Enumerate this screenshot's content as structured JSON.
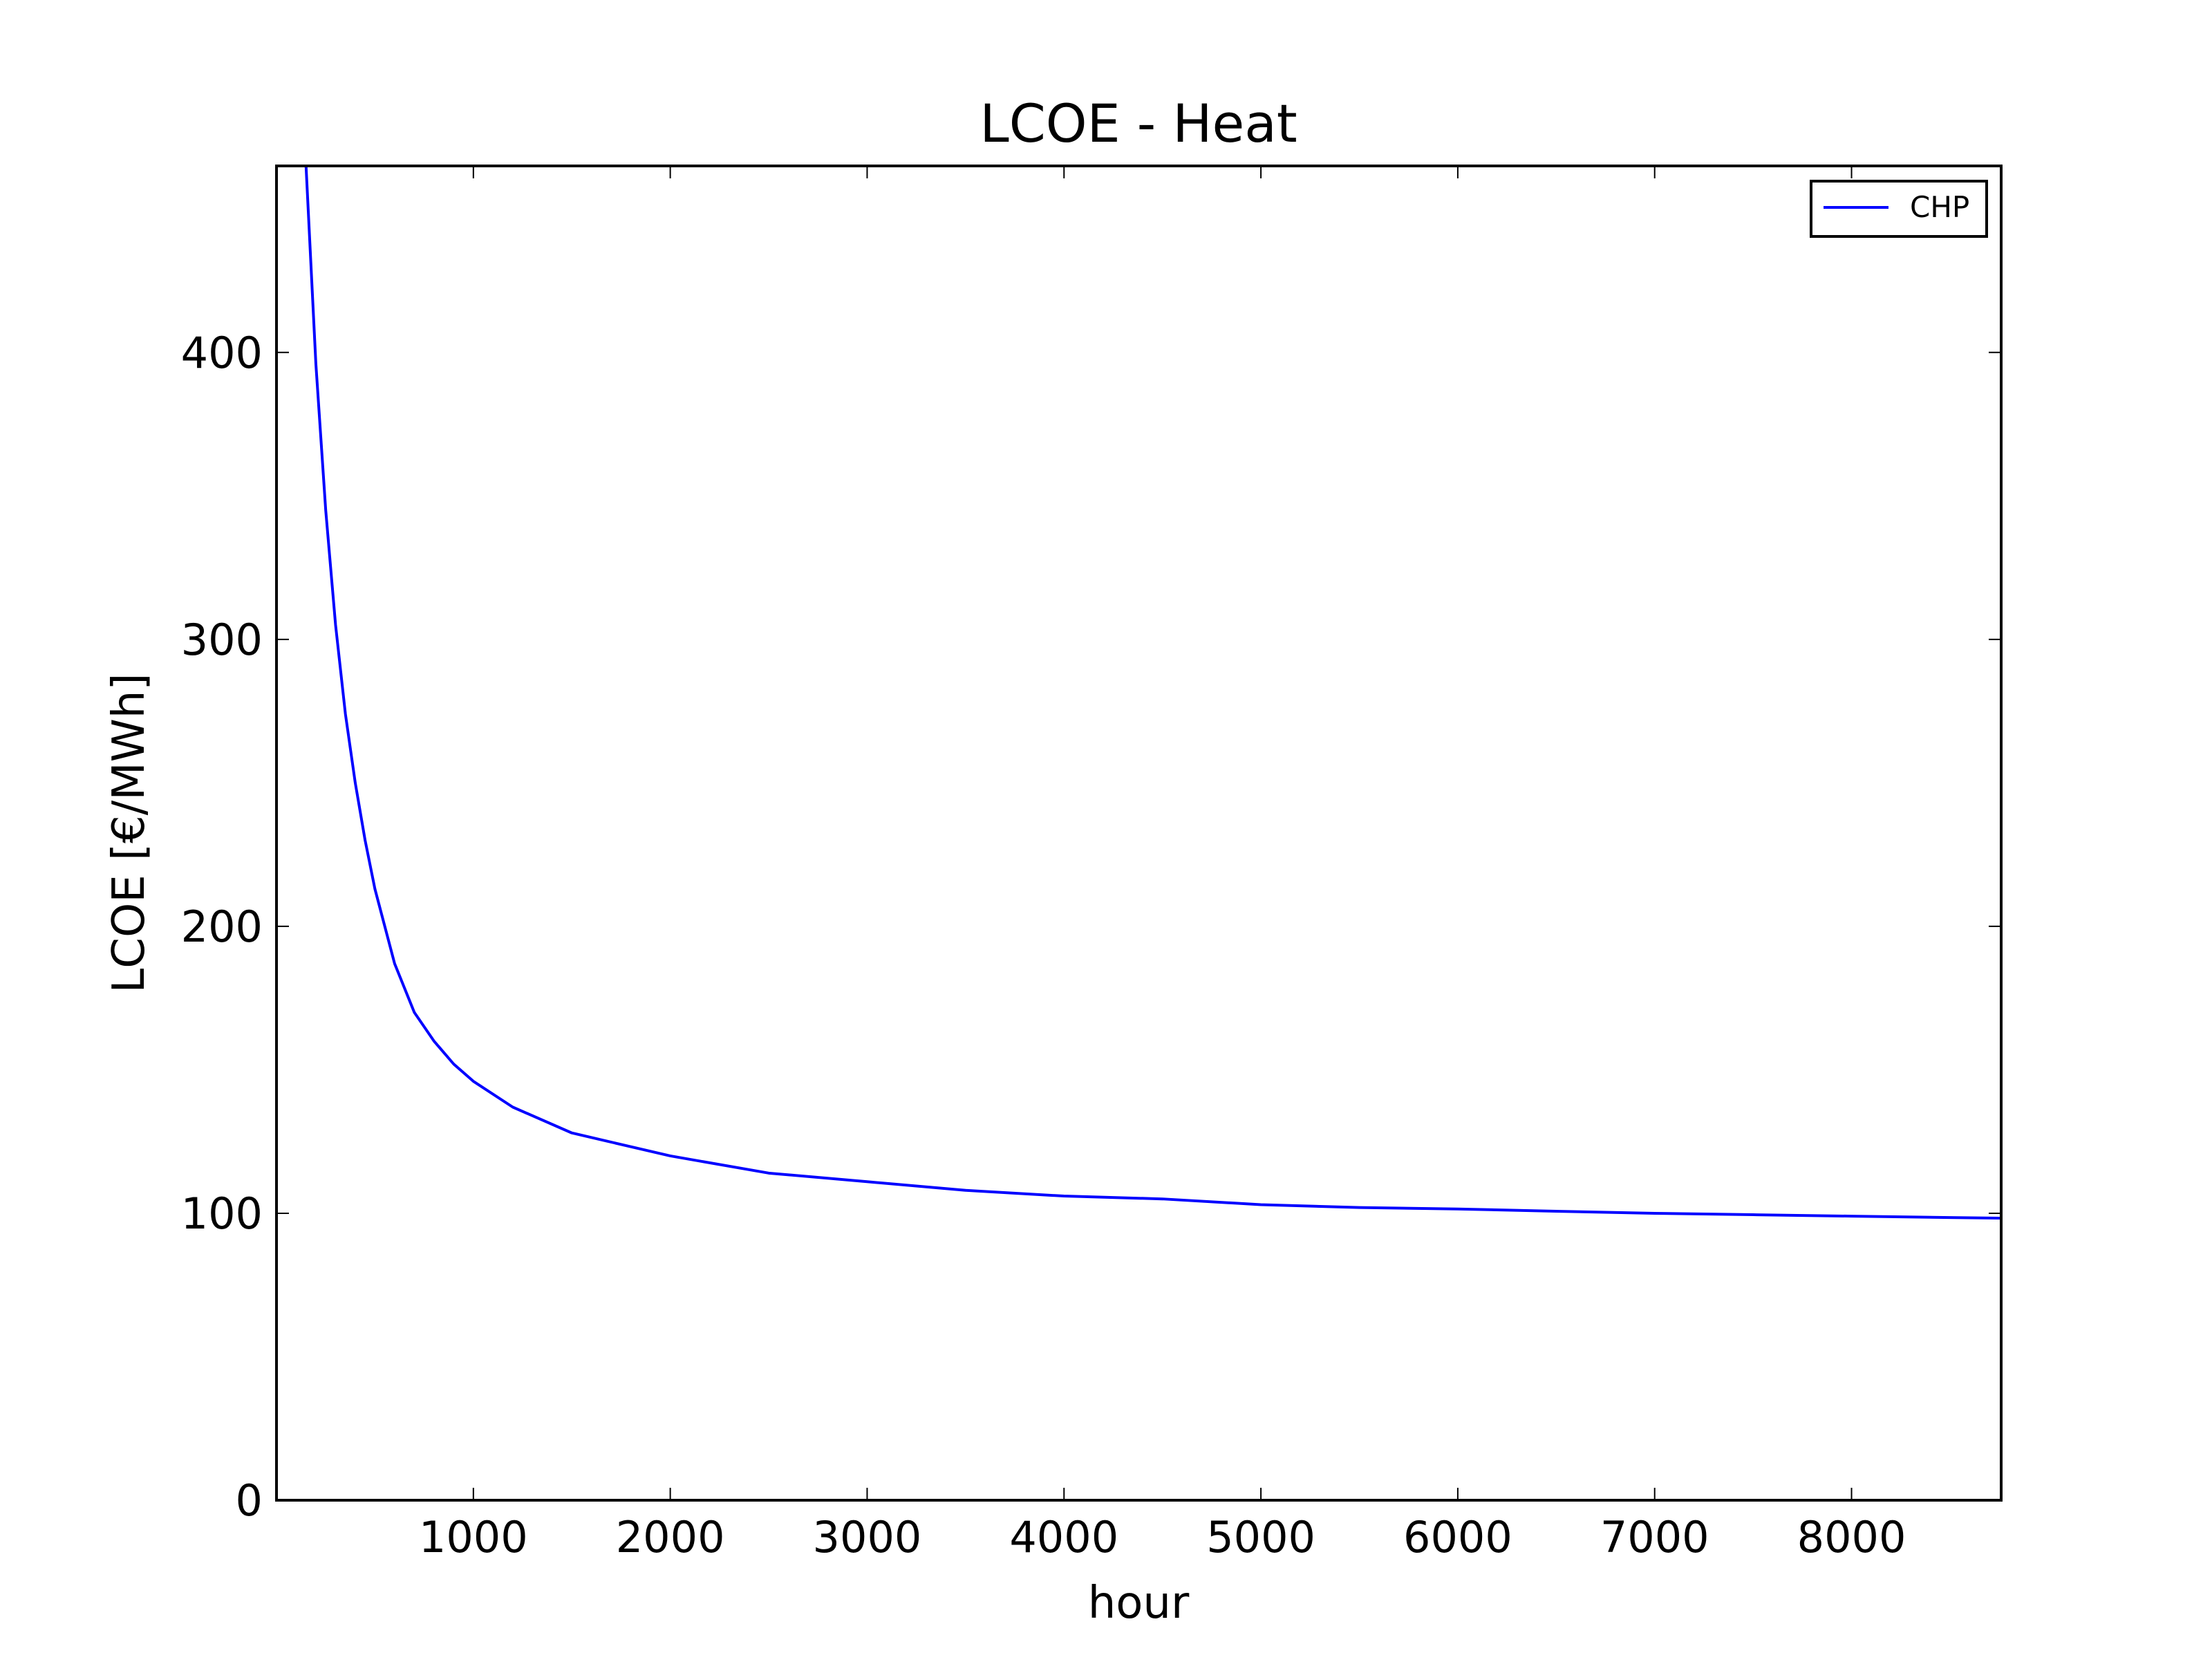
{
  "chart_data": {
    "type": "line",
    "title": "LCOE - Heat",
    "xlabel": "hour",
    "ylabel": "LCOE [€/MWh]",
    "xlim": [
      0,
      8760
    ],
    "ylim": [
      0,
      465
    ],
    "x_ticks": [
      1000,
      2000,
      3000,
      4000,
      5000,
      6000,
      7000,
      8000
    ],
    "y_ticks": [
      0,
      100,
      200,
      300,
      400
    ],
    "grid": false,
    "legend_position": "top-right",
    "series": [
      {
        "name": "CHP",
        "color": "#0000ff",
        "x": [
          150,
          200,
          250,
          300,
          350,
          400,
          450,
          500,
          600,
          700,
          800,
          900,
          1000,
          1200,
          1500,
          2000,
          2500,
          3000,
          3500,
          4000,
          4500,
          5000,
          5500,
          6000,
          6500,
          7000,
          7500,
          8000,
          8500,
          8760
        ],
        "y": [
          465,
          396,
          345,
          305,
          274,
          250,
          230,
          213,
          187,
          170,
          160,
          152,
          146,
          137,
          128,
          120,
          114,
          111,
          108,
          106,
          105,
          103,
          102,
          101.5,
          100.7,
          100,
          99.5,
          99,
          98.5,
          98.3
        ]
      }
    ]
  }
}
